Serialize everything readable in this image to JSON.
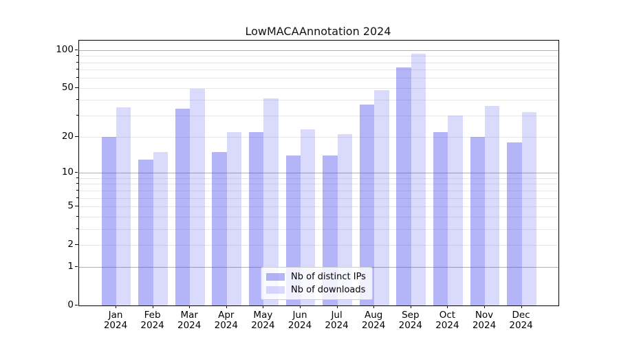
{
  "chart_data": {
    "type": "bar",
    "title": "LowMACAAnnotation 2024",
    "categories": [
      "Jan",
      "Feb",
      "Mar",
      "Apr",
      "May",
      "Jun",
      "Jul",
      "Aug",
      "Sep",
      "Oct",
      "Nov",
      "Dec"
    ],
    "xtick_year": "2024",
    "series": [
      {
        "name": "Nb of distinct IPs",
        "color": "rgba(68,68,238,0.4)",
        "values": [
          20,
          13,
          34,
          15,
          22,
          14,
          14,
          37,
          73,
          22,
          20,
          18
        ]
      },
      {
        "name": "Nb of downloads",
        "color": "rgba(68,68,238,0.2)",
        "values": [
          35,
          15,
          49,
          22,
          41,
          23,
          21,
          48,
          94,
          30,
          36,
          32
        ]
      }
    ],
    "xlabel": "",
    "ylabel": "",
    "yscale": "log1p",
    "ylim": [
      0,
      119
    ],
    "ytick_labels": [
      "100",
      "50",
      "20",
      "10",
      "5",
      "2",
      "1",
      "0"
    ],
    "ytick_values": [
      100,
      50,
      20,
      10,
      5,
      2,
      1,
      0
    ],
    "major_gridlines": [
      1,
      10,
      100
    ],
    "minor_gridlines": [
      2,
      3,
      4,
      5,
      6,
      7,
      8,
      9,
      20,
      30,
      40,
      50,
      60,
      70,
      80,
      90
    ],
    "grid": true,
    "legend_position": "lower center"
  },
  "colors": {
    "bar_distinct_ips": "rgba(68,68,238,0.4)",
    "bar_downloads": "rgba(68,68,238,0.2)",
    "major_grid": "#b0b0b0",
    "minor_grid": "#e8e8e8",
    "spine": "#000000",
    "text": "#111111",
    "legend_border": "#cccccc",
    "legend_background": "rgba(255,255,255,0.8)"
  }
}
